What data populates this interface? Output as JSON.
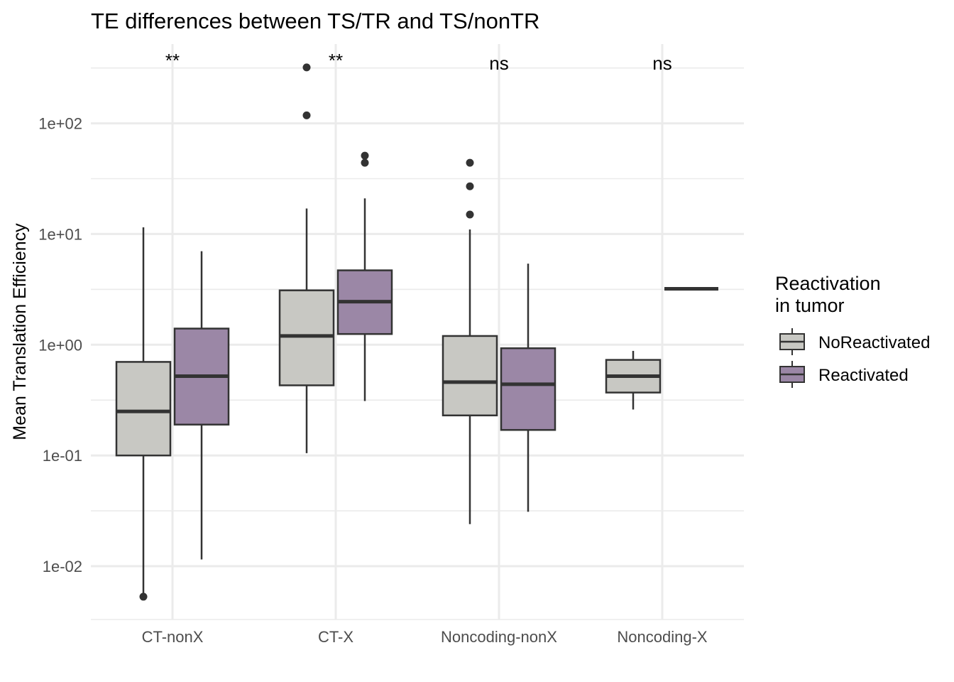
{
  "chart_data": {
    "type": "boxplot",
    "title": "TE differences between TS/TR and TS/nonTR",
    "xlabel": "",
    "ylabel": "Mean Translation Efficiency",
    "y_scale": "log10",
    "ylim": [
      0.0033,
      520
    ],
    "y_ticks": [
      {
        "value": 0.01,
        "label": "1e-02"
      },
      {
        "value": 0.1,
        "label": "1e-01"
      },
      {
        "value": 1,
        "label": "1e+00"
      },
      {
        "value": 10,
        "label": "1e+01"
      },
      {
        "value": 100,
        "label": "1e+02"
      }
    ],
    "categories": [
      "CT-nonX",
      "CT-X",
      "Noncoding-nonX",
      "Noncoding-X"
    ],
    "significance": [
      "**",
      "**",
      "ns",
      "ns"
    ],
    "legend": {
      "title_lines": [
        "Reactivation",
        "in tumor"
      ],
      "placement": "right"
    },
    "series": [
      {
        "name": "NoReactivated",
        "color": "#c8c8c3",
        "boxes": [
          {
            "category": "CT-nonX",
            "low": 0.0055,
            "q1": 0.1,
            "median": 0.25,
            "q3": 0.7,
            "high": 11.5,
            "outliers": [
              0.0053
            ]
          },
          {
            "category": "CT-X",
            "low": 0.105,
            "q1": 0.43,
            "median": 1.2,
            "q3": 3.1,
            "high": 17,
            "outliers": [
              320,
              118
            ]
          },
          {
            "category": "Noncoding-nonX",
            "low": 0.024,
            "q1": 0.23,
            "median": 0.46,
            "q3": 1.2,
            "high": 11,
            "outliers": [
              44,
              27,
              15
            ]
          },
          {
            "category": "Noncoding-X",
            "low": 0.26,
            "q1": 0.37,
            "median": 0.52,
            "q3": 0.73,
            "high": 0.88,
            "outliers": []
          }
        ]
      },
      {
        "name": "Reactivated",
        "color": "#9b87a6",
        "boxes": [
          {
            "category": "CT-nonX",
            "low": 0.0115,
            "q1": 0.19,
            "median": 0.52,
            "q3": 1.4,
            "high": 7,
            "outliers": []
          },
          {
            "category": "CT-X",
            "low": 0.31,
            "q1": 1.25,
            "median": 2.45,
            "q3": 4.7,
            "high": 21,
            "outliers": [
              51,
              44
            ]
          },
          {
            "category": "Noncoding-nonX",
            "low": 0.031,
            "q1": 0.17,
            "median": 0.44,
            "q3": 0.93,
            "high": 5.4,
            "outliers": []
          },
          {
            "category": "Noncoding-X",
            "low": 3.2,
            "q1": 3.2,
            "median": 3.2,
            "q3": 3.2,
            "high": 3.2,
            "outliers": []
          }
        ]
      }
    ]
  }
}
